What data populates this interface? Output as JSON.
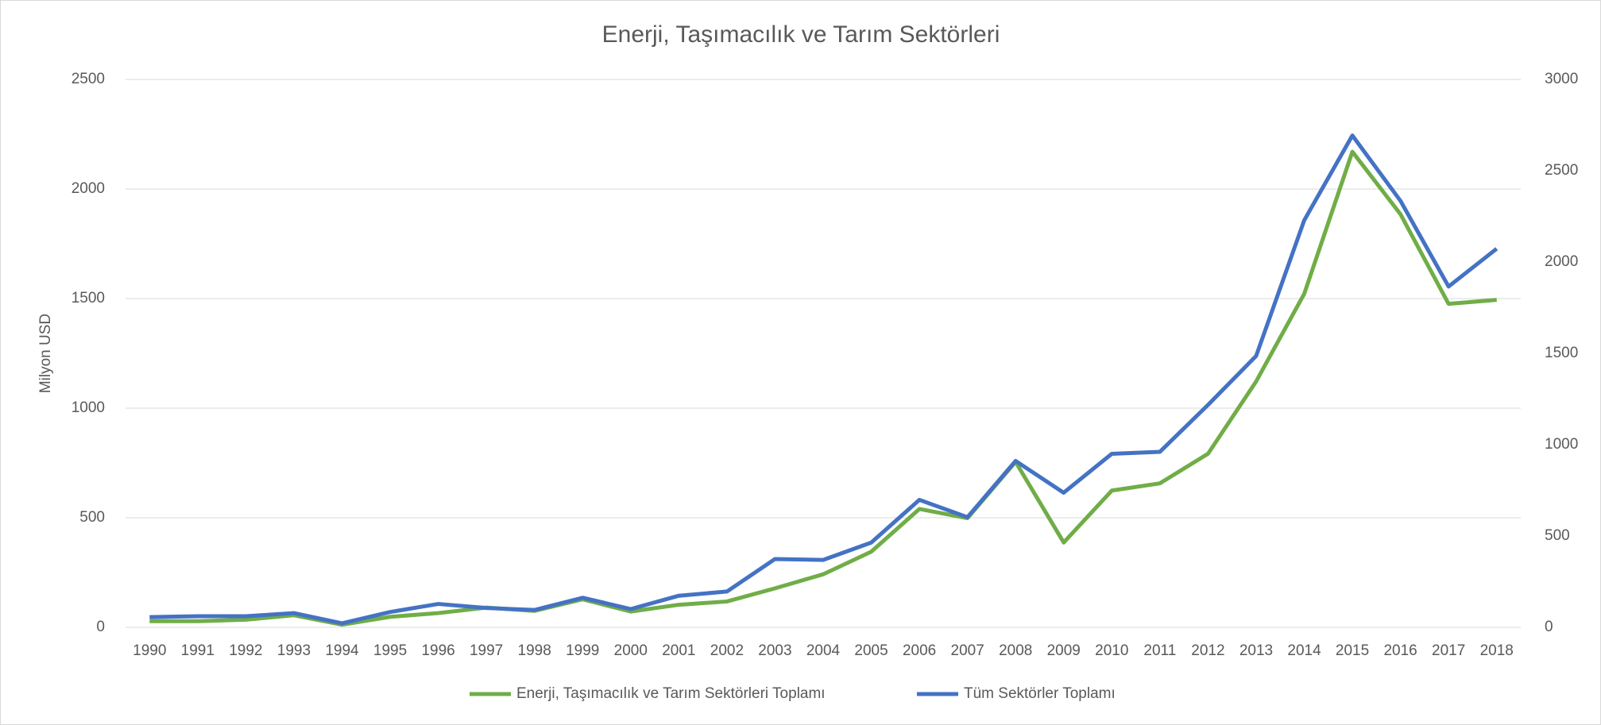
{
  "chart_data": {
    "type": "line",
    "title": "Enerji, Taşımacılık ve Tarım Sektörleri",
    "y_label": "Milyon USD",
    "categories": [
      "1990",
      "1991",
      "1992",
      "1993",
      "1994",
      "1995",
      "1996",
      "1997",
      "1998",
      "1999",
      "2000",
      "2001",
      "2002",
      "2003",
      "2004",
      "2005",
      "2006",
      "2007",
      "2008",
      "2009",
      "2010",
      "2011",
      "2012",
      "2013",
      "2014",
      "2015",
      "2016",
      "2017",
      "2018"
    ],
    "series": [
      {
        "name": "Enerji, Taşımacılık ve Tarım Sektörleri Toplamı",
        "color": "#70ad47",
        "axis": "y",
        "values": [
          28,
          28,
          35,
          55,
          12,
          48,
          65,
          90,
          75,
          128,
          72,
          103,
          118,
          178,
          242,
          345,
          540,
          498,
          755,
          387,
          624,
          657,
          792,
          1122,
          1522,
          2170,
          1885,
          1476,
          1494
        ]
      },
      {
        "name": "Tüm Sektörler Toplamı",
        "color": "#4472c4",
        "axis": "y2",
        "values": [
          56,
          61,
          61,
          78,
          22,
          84,
          128,
          106,
          95,
          162,
          100,
          173,
          196,
          374,
          369,
          464,
          698,
          603,
          911,
          737,
          950,
          961,
          1218,
          1486,
          2229,
          2693,
          2335,
          1866,
          2073
        ]
      }
    ],
    "ylim": [
      0,
      2500
    ],
    "yticks": [
      0,
      500,
      1000,
      1500,
      2000,
      2500
    ],
    "y2lim": [
      0,
      3000
    ],
    "y2ticks": [
      0,
      500,
      1000,
      1500,
      2000,
      2500,
      3000
    ],
    "grid": true,
    "legend": "bottom"
  }
}
